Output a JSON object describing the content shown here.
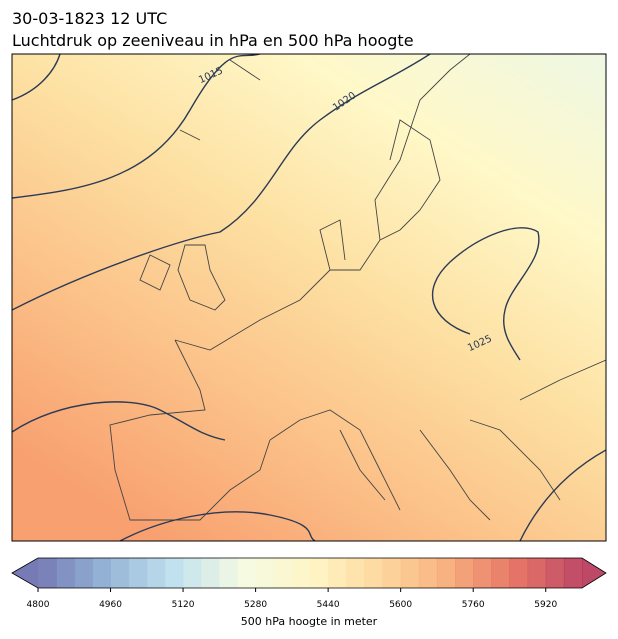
{
  "header": {
    "title": [
      "30-03-1823 12 UTC",
      "Luchtdruk op zeeniveau in hPa en 500 hPa hoogte"
    ]
  },
  "map": {
    "contour_labels": [
      "1015",
      "1020",
      "1025"
    ]
  },
  "colorbar": {
    "range": [
      4800,
      6000
    ],
    "step": 40,
    "colors": [
      "#5e63a8",
      "#82a8d0",
      "#b7dceb",
      "#f3f9dd",
      "#fff4be",
      "#fdd390",
      "#f7a36a",
      "#e1604c",
      "#b3284d"
    ],
    "ticks": [
      4800,
      4960,
      5120,
      5280,
      5440,
      5600,
      5760,
      5920
    ],
    "label": "500 hPa hoogte in meter"
  }
}
